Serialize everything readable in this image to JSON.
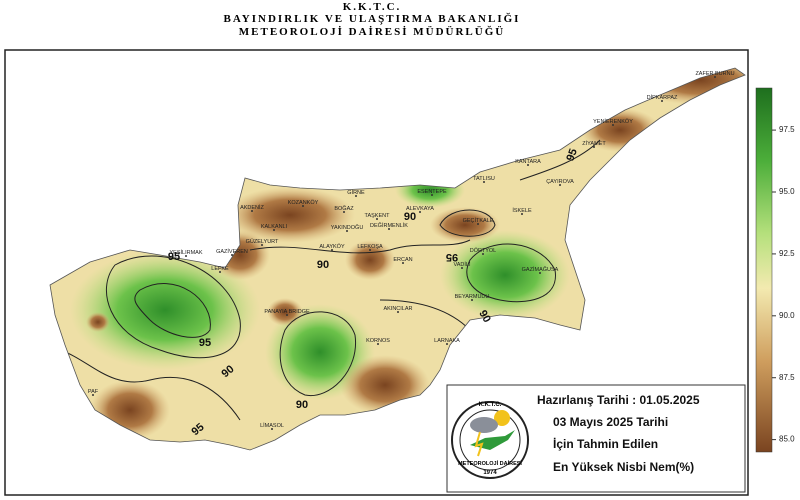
{
  "header": {
    "lines": [
      "K.K.T.C.",
      "BAYINDIRLIK VE ULAŞTIRMA  BAKANLIĞI",
      "METEOROLOJİ  DAİRESİ  MÜDÜRLÜĞÜ"
    ]
  },
  "places": [
    "ZAFER BURNU",
    "DİPKARPAZ",
    "YENİERENKÖY",
    "ZİYAMET",
    "KANTARA",
    "TATLISU",
    "ÇAYIROVA",
    "GİRNE",
    "KOZANKÖY",
    "BOĞAZ",
    "ESENTEPE",
    "ALEVKAYA",
    "GEÇİTKALE",
    "İSKELE",
    "AKDENİZ",
    "TAŞKENT",
    "DEĞİRMENLİK",
    "YAKINDOĞU",
    "KALKANLI",
    "GÜZELYURT",
    "GAZİVEREN",
    "ALAYKÖY",
    "LEFKOŞA",
    "DÖRTYOL",
    "VADİLİ",
    "ERCAN",
    "GAZİMAĞUSA",
    "YEŞİLIRMAK",
    "LEFKE",
    "PANAYIA BRIDGE",
    "AKINCILAR",
    "BEYARMUDU",
    "KORNOS",
    "LARNAKA",
    "LİMASOL",
    "PAF"
  ],
  "contour_labels": [
    90,
    90,
    90,
    90,
    90,
    95,
    95,
    95,
    95,
    95
  ],
  "colorbar": {
    "range": [
      84.5,
      99.2
    ],
    "ticks": [
      {
        "value": 85,
        "label": "85.0"
      },
      87.5,
      {
        "value": 90,
        "label": "90.0"
      },
      92.5,
      {
        "value": 95,
        "label": "95.0"
      },
      97.5
    ]
  },
  "info": {
    "lines": [
      "Hazırlanış Tarihi : 01.05.2025",
      "03 Mayıs 2025 Tarihi",
      "İçin Tahmin Edilen",
      "En Yüksek Nisbi Nem(%)"
    ]
  },
  "logo": {
    "top": "K.K.T.C.",
    "bottom": "METEOROLOJİ DAİRESİ",
    "year": "1974"
  }
}
